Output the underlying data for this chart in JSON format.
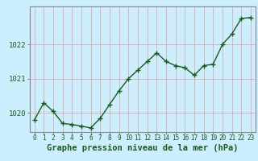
{
  "x": [
    0,
    1,
    2,
    3,
    4,
    5,
    6,
    7,
    8,
    9,
    10,
    11,
    12,
    13,
    14,
    15,
    16,
    17,
    18,
    19,
    20,
    21,
    22,
    23
  ],
  "y": [
    1019.8,
    1020.3,
    1020.05,
    1019.7,
    1019.67,
    1019.62,
    1019.57,
    1019.85,
    1020.25,
    1020.65,
    1021.0,
    1021.25,
    1021.5,
    1021.75,
    1021.5,
    1021.38,
    1021.32,
    1021.1,
    1021.38,
    1021.42,
    1022.0,
    1022.3,
    1022.75,
    1022.78
  ],
  "ylim_min": 1019.45,
  "ylim_max": 1023.1,
  "yticks": [
    1020,
    1021,
    1022
  ],
  "xticks": [
    0,
    1,
    2,
    3,
    4,
    5,
    6,
    7,
    8,
    9,
    10,
    11,
    12,
    13,
    14,
    15,
    16,
    17,
    18,
    19,
    20,
    21,
    22,
    23
  ],
  "line_color": "#1a5c1a",
  "marker": "+",
  "marker_size": 4,
  "background_color": "#cceeff",
  "grid_color": "#ddaaaa",
  "xlabel": "Graphe pression niveau de la mer (hPa)",
  "xlabel_fontsize": 7.5,
  "ylabel_fontsize": 6.5,
  "xtick_fontsize": 5.5,
  "ytick_fontsize": 6.5,
  "line_width": 1.0,
  "spine_color": "#888888"
}
